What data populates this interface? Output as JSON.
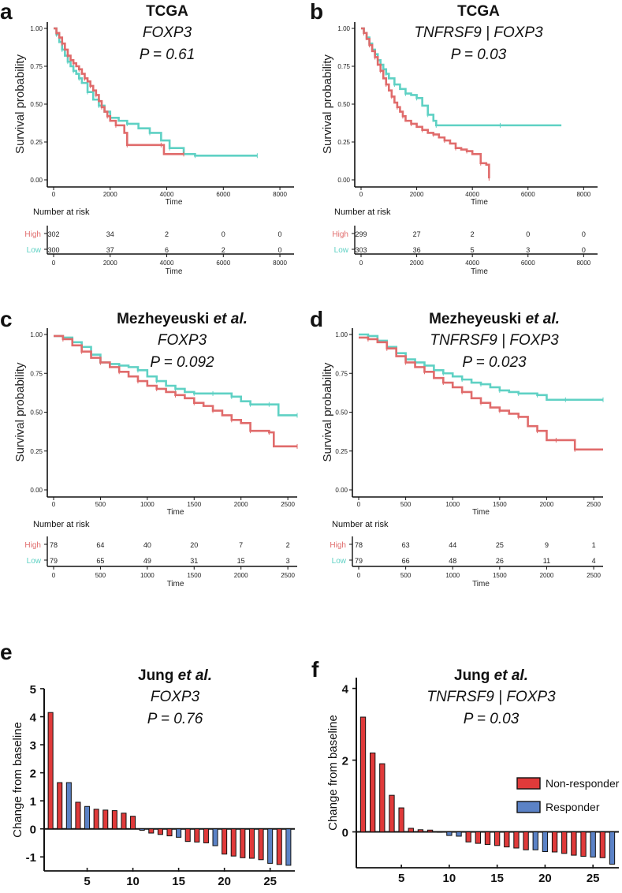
{
  "chart_data": [
    {
      "panel": "a",
      "type": "line",
      "subtype": "kaplan-meier",
      "dataset": "TCGA",
      "gene": "FOXP3",
      "pvalue": "P = 0.61",
      "xlabel": "Time",
      "ylabel": "Survival probability",
      "xlim": [
        0,
        8500
      ],
      "ylim": [
        0,
        1
      ],
      "xticks": [
        "0",
        "2000",
        "4000",
        "6000",
        "8000"
      ],
      "xtick_values": [
        0,
        2000,
        4000,
        6000,
        8000
      ],
      "yticks": [
        "0.00",
        "0.25",
        "0.50",
        "0.75",
        "1.00"
      ],
      "ytick_values": [
        0,
        0.25,
        0.5,
        0.75,
        1
      ],
      "series": [
        {
          "name": "High",
          "color": "#e06b6b",
          "x": [
            0,
            100,
            200,
            300,
            400,
            500,
            600,
            700,
            800,
            900,
            1000,
            1100,
            1200,
            1300,
            1400,
            1500,
            1600,
            1700,
            1800,
            1900,
            2000,
            2200,
            2500,
            2600,
            3000,
            3800,
            3900,
            4600
          ],
          "y": [
            1.0,
            0.97,
            0.94,
            0.9,
            0.86,
            0.82,
            0.79,
            0.77,
            0.75,
            0.73,
            0.7,
            0.67,
            0.65,
            0.62,
            0.59,
            0.56,
            0.52,
            0.48,
            0.45,
            0.42,
            0.39,
            0.36,
            0.31,
            0.23,
            0.23,
            0.23,
            0.17,
            0.17
          ]
        },
        {
          "name": "Low",
          "color": "#5fd1c4",
          "x": [
            0,
            100,
            200,
            300,
            400,
            500,
            600,
            700,
            800,
            900,
            1000,
            1200,
            1400,
            1600,
            1800,
            2000,
            2300,
            2600,
            3000,
            3400,
            3800,
            4100,
            4600,
            5000,
            6000,
            7200
          ],
          "y": [
            1.0,
            0.96,
            0.91,
            0.86,
            0.82,
            0.78,
            0.75,
            0.72,
            0.7,
            0.67,
            0.64,
            0.58,
            0.53,
            0.49,
            0.45,
            0.41,
            0.39,
            0.37,
            0.34,
            0.31,
            0.26,
            0.21,
            0.17,
            0.16,
            0.16,
            0.16
          ]
        }
      ],
      "risk_table": {
        "title": "Number at risk",
        "groups": [
          "High",
          "Low"
        ],
        "times": [
          0,
          2000,
          4000,
          6000,
          8000
        ],
        "counts": [
          [
            "302",
            "34",
            "2",
            "0",
            "0"
          ],
          [
            "300",
            "37",
            "6",
            "2",
            "0"
          ]
        ]
      }
    },
    {
      "panel": "b",
      "type": "line",
      "subtype": "kaplan-meier",
      "dataset": "TCGA",
      "gene": "TNFRSF9 | FOXP3",
      "pvalue": "P = 0.03",
      "xlabel": "Time",
      "ylabel": "Survival probability",
      "xlim": [
        0,
        8500
      ],
      "ylim": [
        0,
        1
      ],
      "xticks": [
        "0",
        "2000",
        "4000",
        "6000",
        "8000"
      ],
      "xtick_values": [
        0,
        2000,
        4000,
        6000,
        8000
      ],
      "yticks": [
        "0.00",
        "0.25",
        "0.50",
        "0.75",
        "1.00"
      ],
      "ytick_values": [
        0,
        0.25,
        0.5,
        0.75,
        1
      ],
      "series": [
        {
          "name": "High",
          "color": "#e06b6b",
          "x": [
            0,
            100,
            200,
            300,
            400,
            500,
            600,
            700,
            800,
            900,
            1000,
            1100,
            1200,
            1300,
            1400,
            1500,
            1600,
            1800,
            2000,
            2200,
            2400,
            2600,
            2800,
            3000,
            3200,
            3400,
            3600,
            3800,
            4000,
            4300,
            4500,
            4600
          ],
          "y": [
            1.0,
            0.97,
            0.93,
            0.89,
            0.85,
            0.81,
            0.76,
            0.72,
            0.67,
            0.63,
            0.59,
            0.55,
            0.51,
            0.48,
            0.45,
            0.42,
            0.39,
            0.37,
            0.35,
            0.33,
            0.31,
            0.3,
            0.28,
            0.26,
            0.24,
            0.21,
            0.2,
            0.19,
            0.17,
            0.11,
            0.1,
            0.01
          ]
        },
        {
          "name": "Low",
          "color": "#5fd1c4",
          "x": [
            0,
            100,
            200,
            300,
            400,
            500,
            600,
            700,
            800,
            900,
            1000,
            1200,
            1400,
            1600,
            1800,
            2000,
            2200,
            2400,
            2600,
            2700,
            3500,
            5000,
            7200
          ],
          "y": [
            1.0,
            0.97,
            0.94,
            0.9,
            0.86,
            0.83,
            0.79,
            0.76,
            0.73,
            0.7,
            0.67,
            0.63,
            0.6,
            0.57,
            0.56,
            0.54,
            0.49,
            0.43,
            0.39,
            0.36,
            0.36,
            0.36,
            0.36
          ]
        }
      ],
      "risk_table": {
        "title": "Number at risk",
        "groups": [
          "High",
          "Low"
        ],
        "times": [
          0,
          2000,
          4000,
          6000,
          8000
        ],
        "counts": [
          [
            "299",
            "27",
            "2",
            "0",
            "0"
          ],
          [
            "303",
            "36",
            "5",
            "3",
            "0"
          ]
        ]
      }
    },
    {
      "panel": "c",
      "type": "line",
      "subtype": "kaplan-meier",
      "dataset_name": "Mezheyeuski",
      "dataset_suffix": "et al.",
      "gene": "FOXP3",
      "pvalue": "P = 0.092",
      "xlabel": "Time",
      "ylabel": "Survival probability",
      "xlim": [
        0,
        2600
      ],
      "ylim": [
        0,
        1
      ],
      "xticks": [
        "0",
        "500",
        "1000",
        "1500",
        "2000",
        "2500"
      ],
      "xtick_values": [
        0,
        500,
        1000,
        1500,
        2000,
        2500
      ],
      "yticks": [
        "0.00",
        "0.25",
        "0.50",
        "0.75",
        "1.00"
      ],
      "ytick_values": [
        0,
        0.25,
        0.5,
        0.75,
        1
      ],
      "series": [
        {
          "name": "High",
          "color": "#e06b6b",
          "x": [
            0,
            100,
            200,
            300,
            400,
            500,
            600,
            700,
            800,
            900,
            1000,
            1100,
            1200,
            1300,
            1400,
            1500,
            1600,
            1700,
            1800,
            1900,
            2000,
            2100,
            2200,
            2300,
            2350,
            2600
          ],
          "y": [
            0.99,
            0.97,
            0.93,
            0.89,
            0.85,
            0.82,
            0.79,
            0.76,
            0.73,
            0.7,
            0.67,
            0.65,
            0.63,
            0.61,
            0.59,
            0.56,
            0.54,
            0.51,
            0.48,
            0.45,
            0.43,
            0.38,
            0.38,
            0.37,
            0.28,
            0.28
          ]
        },
        {
          "name": "Low",
          "color": "#5fd1c4",
          "x": [
            0,
            100,
            200,
            300,
            400,
            500,
            600,
            700,
            800,
            900,
            1000,
            1100,
            1200,
            1300,
            1400,
            1500,
            1600,
            1700,
            1800,
            1900,
            2000,
            2100,
            2200,
            2300,
            2400,
            2600
          ],
          "y": [
            0.99,
            0.98,
            0.95,
            0.92,
            0.87,
            0.82,
            0.81,
            0.8,
            0.79,
            0.77,
            0.73,
            0.7,
            0.67,
            0.65,
            0.63,
            0.62,
            0.62,
            0.62,
            0.62,
            0.6,
            0.57,
            0.55,
            0.55,
            0.55,
            0.48,
            0.48
          ]
        }
      ],
      "risk_table": {
        "title": "Number at risk",
        "groups": [
          "High",
          "Low"
        ],
        "times": [
          0,
          500,
          1000,
          1500,
          2000,
          2500
        ],
        "counts": [
          [
            "78",
            "64",
            "40",
            "20",
            "7",
            "2"
          ],
          [
            "79",
            "65",
            "49",
            "31",
            "15",
            "3"
          ]
        ]
      }
    },
    {
      "panel": "d",
      "type": "line",
      "subtype": "kaplan-meier",
      "dataset_name": "Mezheyeuski",
      "dataset_suffix": "et al.",
      "gene": "TNFRSF9 | FOXP3",
      "pvalue": "P = 0.023",
      "xlabel": "Time",
      "ylabel": "Survival probability",
      "xlim": [
        0,
        2600
      ],
      "ylim": [
        0,
        1
      ],
      "xticks": [
        "0",
        "500",
        "1000",
        "1500",
        "2000",
        "2500"
      ],
      "xtick_values": [
        0,
        500,
        1000,
        1500,
        2000,
        2500
      ],
      "yticks": [
        "0.00",
        "0.25",
        "0.50",
        "0.75",
        "1.00"
      ],
      "ytick_values": [
        0,
        0.25,
        0.5,
        0.75,
        1
      ],
      "series": [
        {
          "name": "High",
          "color": "#e06b6b",
          "x": [
            0,
            100,
            200,
            300,
            400,
            500,
            600,
            700,
            800,
            900,
            1000,
            1100,
            1200,
            1300,
            1400,
            1500,
            1600,
            1700,
            1800,
            1900,
            2000,
            2100,
            2200,
            2300,
            2600
          ],
          "y": [
            0.98,
            0.97,
            0.95,
            0.91,
            0.86,
            0.82,
            0.79,
            0.76,
            0.72,
            0.69,
            0.66,
            0.63,
            0.59,
            0.56,
            0.53,
            0.51,
            0.49,
            0.47,
            0.41,
            0.38,
            0.32,
            0.32,
            0.32,
            0.26,
            0.26
          ]
        },
        {
          "name": "Low",
          "color": "#5fd1c4",
          "x": [
            0,
            100,
            200,
            300,
            400,
            500,
            600,
            700,
            800,
            900,
            1000,
            1100,
            1200,
            1300,
            1400,
            1500,
            1600,
            1700,
            1800,
            1900,
            2000,
            2200,
            2400,
            2600
          ],
          "y": [
            1.0,
            0.99,
            0.96,
            0.92,
            0.88,
            0.84,
            0.82,
            0.8,
            0.77,
            0.75,
            0.73,
            0.71,
            0.69,
            0.68,
            0.66,
            0.64,
            0.63,
            0.62,
            0.62,
            0.61,
            0.58,
            0.58,
            0.58,
            0.58
          ]
        }
      ],
      "risk_table": {
        "title": "Number at risk",
        "groups": [
          "High",
          "Low"
        ],
        "times": [
          0,
          500,
          1000,
          1500,
          2000,
          2500
        ],
        "counts": [
          [
            "78",
            "63",
            "44",
            "25",
            "9",
            "1"
          ],
          [
            "79",
            "66",
            "48",
            "26",
            "11",
            "4"
          ]
        ]
      }
    },
    {
      "panel": "e",
      "type": "bar",
      "subtype": "waterfall",
      "dataset_name": "Jung",
      "dataset_suffix": "et al.",
      "gene": "FOXP3",
      "pvalue": "P = 0.76",
      "ylabel": "Change from baseline",
      "ylim": [
        -1.5,
        5
      ],
      "yticks": [
        "-1",
        "0",
        "1",
        "2",
        "3",
        "4",
        "5"
      ],
      "ytick_values": [
        -1,
        0,
        1,
        2,
        3,
        4,
        5
      ],
      "xticks": [
        "5",
        "10",
        "15",
        "20",
        "25"
      ],
      "xtick_values": [
        5,
        10,
        15,
        20,
        25
      ],
      "categories": [
        1,
        2,
        3,
        4,
        5,
        6,
        7,
        8,
        9,
        10,
        11,
        12,
        13,
        14,
        15,
        16,
        17,
        18,
        19,
        20,
        21,
        22,
        23,
        24,
        25,
        26,
        27
      ],
      "values": [
        4.15,
        1.65,
        1.65,
        0.95,
        0.8,
        0.7,
        0.67,
        0.65,
        0.56,
        0.45,
        -0.05,
        -0.15,
        -0.2,
        -0.25,
        -0.3,
        -0.45,
        -0.47,
        -0.5,
        -0.6,
        -0.9,
        -0.97,
        -1.03,
        -1.05,
        -1.1,
        -1.23,
        -1.27,
        -1.3
      ],
      "groups": [
        "NR",
        "NR",
        "R",
        "NR",
        "R",
        "NR",
        "NR",
        "NR",
        "NR",
        "NR",
        "R",
        "NR",
        "NR",
        "NR",
        "R",
        "NR",
        "NR",
        "NR",
        "R",
        "NR",
        "NR",
        "NR",
        "NR",
        "NR",
        "R",
        "NR",
        "R"
      ]
    },
    {
      "panel": "f",
      "type": "bar",
      "subtype": "waterfall",
      "dataset_name": "Jung",
      "dataset_suffix": "et al.",
      "gene": "TNFRSF9 | FOXP3",
      "pvalue": "P = 0.03",
      "ylabel": "Change from baseline",
      "ylim": [
        -1,
        4.3
      ],
      "yticks": [
        "0",
        "2",
        "4"
      ],
      "ytick_values": [
        0,
        2,
        4
      ],
      "xticks": [
        "5",
        "10",
        "15",
        "20",
        "25"
      ],
      "xtick_values": [
        5,
        10,
        15,
        20,
        25
      ],
      "categories": [
        1,
        2,
        3,
        4,
        5,
        6,
        7,
        8,
        9,
        10,
        11,
        12,
        13,
        14,
        15,
        16,
        17,
        18,
        19,
        20,
        21,
        22,
        23,
        24,
        25,
        26,
        27
      ],
      "values": [
        3.2,
        2.2,
        1.9,
        1.02,
        0.67,
        0.1,
        0.06,
        0.05,
        0.01,
        -0.1,
        -0.12,
        -0.28,
        -0.32,
        -0.35,
        -0.38,
        -0.42,
        -0.45,
        -0.5,
        -0.5,
        -0.55,
        -0.56,
        -0.6,
        -0.65,
        -0.68,
        -0.7,
        -0.72,
        -0.9
      ],
      "groups": [
        "NR",
        "NR",
        "NR",
        "NR",
        "NR",
        "NR",
        "NR",
        "NR",
        "NR",
        "R",
        "R",
        "NR",
        "NR",
        "NR",
        "NR",
        "NR",
        "NR",
        "NR",
        "R",
        "R",
        "NR",
        "NR",
        "NR",
        "NR",
        "R",
        "NR",
        "R"
      ],
      "legend": {
        "position": "right",
        "entries": [
          {
            "key": "NR",
            "label": "Non-responder",
            "color": "#e03a3a"
          },
          {
            "key": "R",
            "label": "Responder",
            "color": "#5b82c6"
          }
        ]
      }
    }
  ],
  "colors": {
    "high": "#e06b6b",
    "low": "#5fd1c4",
    "nonresponder": "#e03a3a",
    "responder": "#5b82c6",
    "axis": "#111111"
  }
}
